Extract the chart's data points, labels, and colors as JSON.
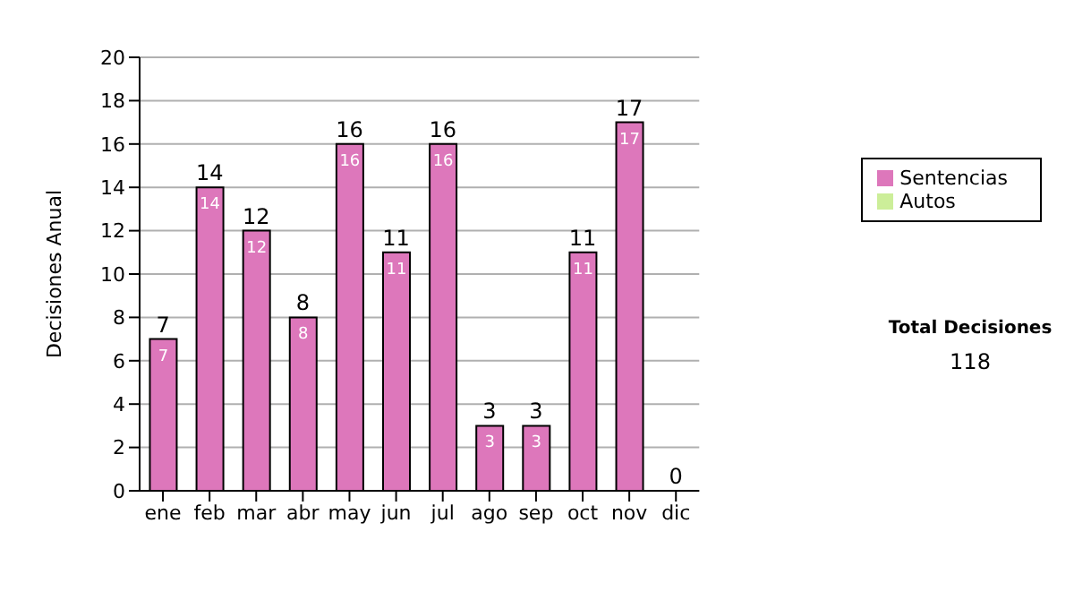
{
  "chart_data": {
    "type": "bar",
    "ylabel": "Decisiones Anual",
    "categories": [
      "ene",
      "feb",
      "mar",
      "abr",
      "may",
      "jun",
      "jul",
      "ago",
      "sep",
      "oct",
      "nov",
      "dic"
    ],
    "series": [
      {
        "name": "Sentencias",
        "color": "#dd77bb",
        "values": [
          7,
          14,
          12,
          8,
          16,
          11,
          16,
          3,
          3,
          11,
          17,
          0
        ],
        "value_labels": [
          "7",
          "14",
          "12",
          "8",
          "16",
          "11",
          "16",
          "3",
          "3",
          "11",
          "17",
          null
        ]
      },
      {
        "name": "Autos",
        "color": "#ccee99",
        "values": [
          0,
          0,
          0,
          0,
          0,
          0,
          0,
          0,
          0,
          0,
          0,
          0
        ]
      }
    ],
    "stacked": true,
    "totals": [
      "7",
      "14",
      "12",
      "8",
      "16",
      "11",
      "16",
      "3",
      "3",
      "11",
      "17",
      "0"
    ],
    "ylim": [
      0,
      20
    ],
    "yticks": [
      0,
      2,
      4,
      6,
      8,
      10,
      12,
      14,
      16,
      18,
      20
    ],
    "grid": "y",
    "legend": "right",
    "annotations": [
      "Total Decisiones",
      "118"
    ]
  }
}
